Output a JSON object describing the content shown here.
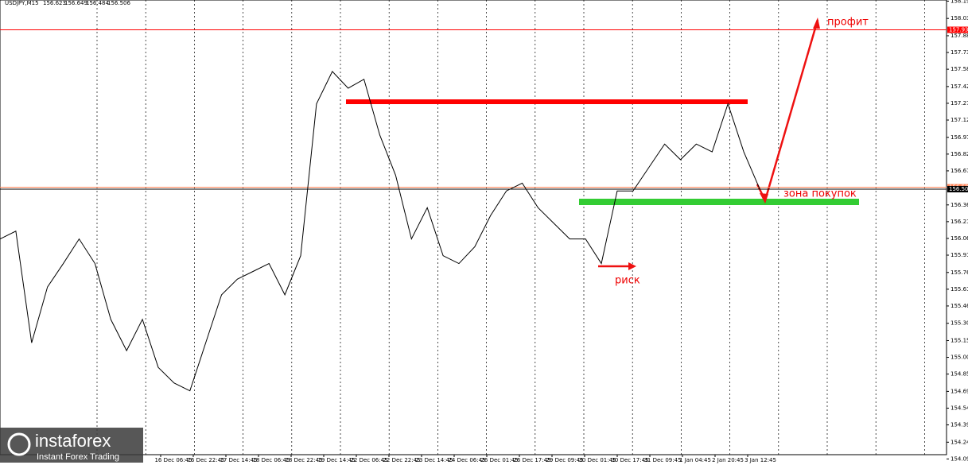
{
  "chart_data": {
    "type": "line",
    "symbol": "USDJPY,M15",
    "ohlc": [
      156.623,
      156.649,
      156.484,
      156.506
    ],
    "values": [
      156.06,
      156.13,
      155.13,
      155.63,
      155.84,
      156.06,
      155.84,
      155.34,
      155.06,
      155.34,
      154.91,
      154.77,
      154.7,
      155.13,
      155.56,
      155.7,
      155.77,
      155.84,
      155.56,
      155.91,
      157.27,
      157.56,
      157.41,
      157.49,
      156.99,
      156.63,
      156.06,
      156.34,
      155.91,
      155.84,
      155.99,
      156.27,
      156.49,
      156.56,
      156.34,
      156.2,
      156.06,
      156.06,
      155.84,
      156.49,
      156.49,
      156.7,
      156.91,
      156.77,
      156.91,
      156.84,
      157.27,
      156.84,
      156.51
    ],
    "color": "#000000",
    "ylim": [
      154.05,
      158.2
    ],
    "yticks": [
      {
        "value": 158.19,
        "label": "158.190"
      },
      158.035,
      {
        "value": 157.88,
        "label": "157.880"
      },
      {
        "value": 157.73,
        "label": "157.730"
      },
      {
        "value": 157.58,
        "label": "157.580"
      },
      157.425,
      157.275,
      157.125,
      {
        "value": 156.97,
        "label": "156.970"
      },
      {
        "value": 156.82,
        "label": "156.820"
      },
      {
        "value": 156.67,
        "label": "156.670"
      },
      156.365,
      156.215,
      156.065,
      155.915,
      {
        "value": 155.76,
        "label": "155.760"
      },
      {
        "value": 155.61,
        "label": "155.610"
      },
      {
        "value": 155.46,
        "label": "155.460"
      },
      155.305,
      {
        "value": 155.15,
        "label": "155.150"
      },
      {
        "value": 155.0,
        "label": "155.000"
      },
      {
        "value": 154.85,
        "label": "154.850"
      },
      154.695,
      154.545,
      154.395,
      {
        "value": 154.24,
        "label": "154.240"
      },
      {
        "value": 154.09,
        "label": "154.090"
      }
    ],
    "x_labels": [
      "16 Dec 06:45",
      "16 Dec 22:45",
      "17 Dec 14:45",
      "18 Dec 06:45",
      "18 Dec 22:45",
      "19 Dec 14:45",
      "22 Dec 06:45",
      "22 Dec 22:45",
      "23 Dec 14:45",
      "24 Dec 06:45",
      "26 Dec 01:45",
      "26 Dec 17:45",
      "29 Dec 09:45",
      "30 Dec 01:45",
      "30 Dec 17:45",
      "31 Dec 09:45",
      "1 Jan 04:45",
      "2 Jan 20:45",
      "3 Jan 12:45"
    ],
    "levels": [
      {
        "value": 157.933,
        "color": "#ff0000"
      },
      {
        "value": 156.523,
        "color": "#ff7f50"
      },
      {
        "value": 156.506,
        "color": "#000000"
      }
    ],
    "annotations": [
      "профит",
      "зона покупок",
      "риск"
    ],
    "logo": {
      "name": "instaforex",
      "tagline": "Instant Forex Trading"
    }
  }
}
